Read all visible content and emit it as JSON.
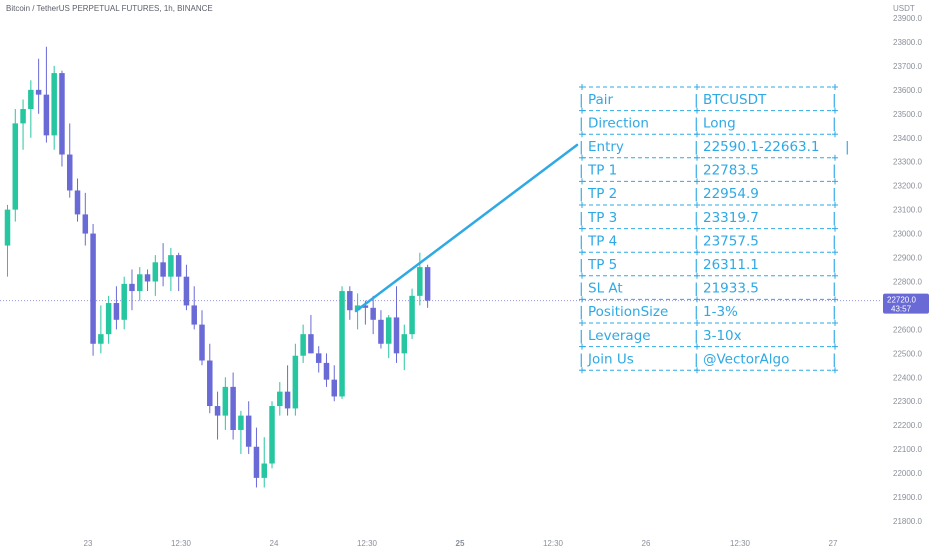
{
  "header": {
    "title": "Bitcoin / TetherUS PERPETUAL FUTURES, 1h, BINANCE"
  },
  "price_axis": {
    "currency": "USDT",
    "current_price": "22720.0",
    "countdown": "43:57"
  },
  "colors": {
    "up": "#26c6a0",
    "down": "#6a6ad6",
    "annotation": "#2fa9e4",
    "price_line": "#6a6ad6"
  },
  "signal_table": {
    "rows": [
      {
        "label": "Pair",
        "value": "BTCUSDT"
      },
      {
        "label": "Direction",
        "value": "Long"
      },
      {
        "label": "Entry",
        "value": "22590.1-22663.1"
      },
      {
        "label": "TP 1",
        "value": "22783.5"
      },
      {
        "label": "TP 2",
        "value": "22954.9"
      },
      {
        "label": "TP 3",
        "value": "23319.7"
      },
      {
        "label": "TP 4",
        "value": "23757.5"
      },
      {
        "label": "TP 5",
        "value": "26311.1"
      },
      {
        "label": "SL At",
        "value": "21933.5"
      },
      {
        "label": "PositionSize",
        "value": "1-3%"
      },
      {
        "label": "Leverage",
        "value": "3-10x"
      },
      {
        "label": "Join Us",
        "value": "@VectorAlgo"
      }
    ]
  },
  "chart_data": {
    "type": "candlestick",
    "symbol": "Bitcoin / TetherUS PERPETUAL FUTURES",
    "interval": "1h",
    "exchange": "BINANCE",
    "y_ticks": [
      "23900.0",
      "23800.0",
      "23700.0",
      "23600.0",
      "23500.0",
      "23400.0",
      "23300.0",
      "23200.0",
      "23100.0",
      "23000.0",
      "22900.0",
      "22800.0",
      "22700.0",
      "22600.0",
      "22500.0",
      "22400.0",
      "22300.0",
      "22200.0",
      "22100.0",
      "22000.0",
      "21900.0",
      "21800.0"
    ],
    "ylim": [
      21800,
      23900
    ],
    "x_ticks": [
      "23",
      "12:30",
      "24",
      "12:30",
      "25",
      "12:30",
      "26",
      "12:30",
      "27"
    ],
    "current_price": 22720.0,
    "candles": [
      {
        "o": 22950,
        "h": 23120,
        "l": 22820,
        "c": 23100
      },
      {
        "o": 23100,
        "h": 23520,
        "l": 23050,
        "c": 23460
      },
      {
        "o": 23460,
        "h": 23560,
        "l": 23350,
        "c": 23520
      },
      {
        "o": 23520,
        "h": 23640,
        "l": 23400,
        "c": 23600
      },
      {
        "o": 23600,
        "h": 23730,
        "l": 23500,
        "c": 23580
      },
      {
        "o": 23580,
        "h": 23780,
        "l": 23380,
        "c": 23410
      },
      {
        "o": 23410,
        "h": 23700,
        "l": 23350,
        "c": 23670
      },
      {
        "o": 23670,
        "h": 23680,
        "l": 23280,
        "c": 23330
      },
      {
        "o": 23330,
        "h": 23460,
        "l": 23150,
        "c": 23180
      },
      {
        "o": 23180,
        "h": 23230,
        "l": 23050,
        "c": 23080
      },
      {
        "o": 23080,
        "h": 23170,
        "l": 22950,
        "c": 23000
      },
      {
        "o": 23000,
        "h": 23040,
        "l": 22490,
        "c": 22540
      },
      {
        "o": 22540,
        "h": 22700,
        "l": 22500,
        "c": 22580
      },
      {
        "o": 22580,
        "h": 22740,
        "l": 22540,
        "c": 22710
      },
      {
        "o": 22710,
        "h": 22780,
        "l": 22600,
        "c": 22640
      },
      {
        "o": 22640,
        "h": 22820,
        "l": 22600,
        "c": 22790
      },
      {
        "o": 22790,
        "h": 22850,
        "l": 22680,
        "c": 22760
      },
      {
        "o": 22760,
        "h": 22860,
        "l": 22720,
        "c": 22830
      },
      {
        "o": 22830,
        "h": 22850,
        "l": 22760,
        "c": 22800
      },
      {
        "o": 22800,
        "h": 22910,
        "l": 22740,
        "c": 22880
      },
      {
        "o": 22880,
        "h": 22960,
        "l": 22780,
        "c": 22820
      },
      {
        "o": 22820,
        "h": 22940,
        "l": 22760,
        "c": 22910
      },
      {
        "o": 22910,
        "h": 22920,
        "l": 22760,
        "c": 22820
      },
      {
        "o": 22820,
        "h": 22870,
        "l": 22680,
        "c": 22700
      },
      {
        "o": 22700,
        "h": 22780,
        "l": 22600,
        "c": 22620
      },
      {
        "o": 22620,
        "h": 22680,
        "l": 22450,
        "c": 22470
      },
      {
        "o": 22470,
        "h": 22540,
        "l": 22250,
        "c": 22280
      },
      {
        "o": 22280,
        "h": 22340,
        "l": 22140,
        "c": 22240
      },
      {
        "o": 22240,
        "h": 22400,
        "l": 22180,
        "c": 22360
      },
      {
        "o": 22360,
        "h": 22420,
        "l": 22140,
        "c": 22180
      },
      {
        "o": 22180,
        "h": 22260,
        "l": 22080,
        "c": 22240
      },
      {
        "o": 22240,
        "h": 22300,
        "l": 22080,
        "c": 22110
      },
      {
        "o": 22110,
        "h": 22190,
        "l": 21940,
        "c": 21980
      },
      {
        "o": 21980,
        "h": 22150,
        "l": 21940,
        "c": 22040
      },
      {
        "o": 22040,
        "h": 22300,
        "l": 22020,
        "c": 22280
      },
      {
        "o": 22280,
        "h": 22380,
        "l": 22240,
        "c": 22340
      },
      {
        "o": 22340,
        "h": 22450,
        "l": 22240,
        "c": 22270
      },
      {
        "o": 22270,
        "h": 22540,
        "l": 22240,
        "c": 22490
      },
      {
        "o": 22490,
        "h": 22620,
        "l": 22460,
        "c": 22580
      },
      {
        "o": 22580,
        "h": 22660,
        "l": 22500,
        "c": 22500
      },
      {
        "o": 22500,
        "h": 22530,
        "l": 22420,
        "c": 22460
      },
      {
        "o": 22460,
        "h": 22500,
        "l": 22360,
        "c": 22390
      },
      {
        "o": 22390,
        "h": 22450,
        "l": 22300,
        "c": 22320
      },
      {
        "o": 22320,
        "h": 22780,
        "l": 22310,
        "c": 22760
      },
      {
        "o": 22760,
        "h": 22780,
        "l": 22640,
        "c": 22680
      },
      {
        "o": 22680,
        "h": 22750,
        "l": 22600,
        "c": 22700
      },
      {
        "o": 22700,
        "h": 22720,
        "l": 22620,
        "c": 22690
      },
      {
        "o": 22690,
        "h": 22740,
        "l": 22580,
        "c": 22640
      },
      {
        "o": 22640,
        "h": 22680,
        "l": 22520,
        "c": 22540
      },
      {
        "o": 22540,
        "h": 22660,
        "l": 22480,
        "c": 22650
      },
      {
        "o": 22650,
        "h": 22780,
        "l": 22460,
        "c": 22500
      },
      {
        "o": 22500,
        "h": 22620,
        "l": 22430,
        "c": 22580
      },
      {
        "o": 22580,
        "h": 22770,
        "l": 22560,
        "c": 22740
      },
      {
        "o": 22740,
        "h": 22920,
        "l": 22700,
        "c": 22860
      },
      {
        "o": 22860,
        "h": 22870,
        "l": 22690,
        "c": 22720
      }
    ]
  }
}
